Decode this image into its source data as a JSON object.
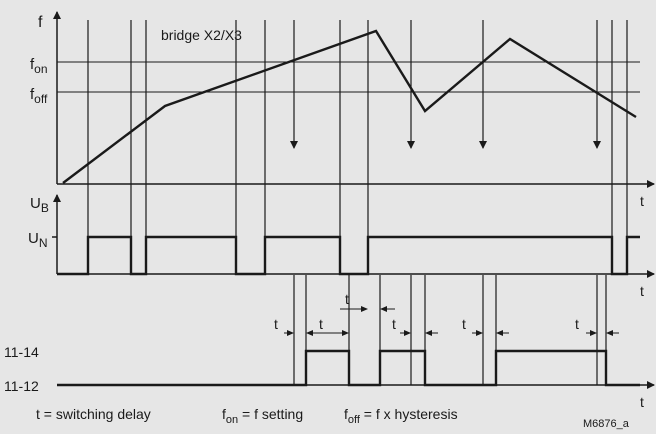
{
  "labels": {
    "f": "f",
    "bridge": "bridge X2/X3",
    "fon_main": "f",
    "fon_sub": "on",
    "foff_main": "f",
    "foff_sub": "off",
    "ub_main": "U",
    "ub_sub": "B",
    "un_main": "U",
    "un_sub": "N",
    "t": "t",
    "c1114": "11-14",
    "c1112": "11-12",
    "code": "M6876_a"
  },
  "legend": {
    "delay": "t = switching delay",
    "fon_main": "f",
    "fon_sub": "on",
    "fon_rest": " = f setting",
    "foff_main": "f",
    "foff_sub": "off",
    "foff_rest": " = f x hysteresis"
  },
  "colors": {
    "background": "#e6e6e6",
    "line": "#1a1a1a"
  }
}
